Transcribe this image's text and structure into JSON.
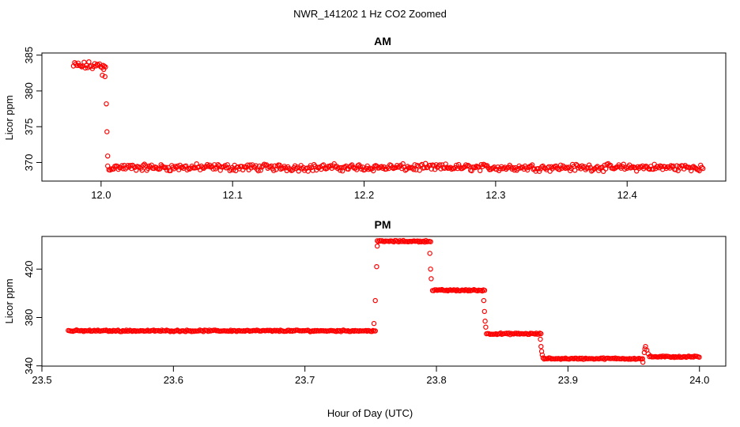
{
  "figure": {
    "title": "NWR_141202  1 Hz CO2 Zoomed",
    "xlabel": "Hour of Day (UTC)"
  },
  "chart_data": [
    {
      "type": "scatter",
      "title": "AM",
      "ylabel": "Licor ppm",
      "xlim": [
        11.955,
        12.475
      ],
      "ylim": [
        367.4,
        385.3
      ],
      "xticks": [
        "12.0",
        "12.1",
        "12.2",
        "12.3",
        "12.4"
      ],
      "yticks": [
        "370",
        "375",
        "380",
        "385"
      ],
      "color": "#ff0000",
      "series": [
        {
          "segments": [
            {
              "x0": 11.979,
              "x1": 12.004,
              "y": 383.5,
              "jitter": 0.55
            },
            {
              "x0": 12.005,
              "x1": 12.458,
              "y": 369.3,
              "jitter": 0.45
            }
          ],
          "transition": [
            {
              "x": 12.001,
              "y": 382.2
            },
            {
              "x": 12.002,
              "y": 383.0
            },
            {
              "x": 12.003,
              "y": 382.0
            },
            {
              "x": 12.004,
              "y": 378.2
            },
            {
              "x": 12.0045,
              "y": 374.3
            },
            {
              "x": 12.005,
              "y": 370.9
            }
          ]
        }
      ]
    },
    {
      "type": "scatter",
      "title": "PM",
      "ylabel": "Licor ppm",
      "xlim": [
        23.5,
        24.02
      ],
      "ylim": [
        339.8,
        447
      ],
      "xticks": [
        "23.5",
        "23.6",
        "23.7",
        "23.8",
        "23.9",
        "24.0"
      ],
      "yticks": [
        "340",
        "380",
        "420"
      ],
      "color": "#ff0000",
      "series": [
        {
          "segments": [
            {
              "x0": 23.52,
              "x1": 23.754,
              "y": 369.0,
              "jitter": 0.6
            },
            {
              "x0": 23.755,
              "x1": 23.796,
              "y": 443.0,
              "jitter": 0.6
            },
            {
              "x0": 23.797,
              "x1": 23.837,
              "y": 402.5,
              "jitter": 0.6
            },
            {
              "x0": 23.838,
              "x1": 23.88,
              "y": 366.5,
              "jitter": 0.6
            },
            {
              "x0": 23.881,
              "x1": 23.957,
              "y": 346.0,
              "jitter": 0.6
            },
            {
              "x0": 23.962,
              "x1": 24.0,
              "y": 347.5,
              "jitter": 0.6
            }
          ],
          "transition": [
            {
              "x": 23.7525,
              "y": 375.0
            },
            {
              "x": 23.7535,
              "y": 394.0
            },
            {
              "x": 23.7545,
              "y": 422.0
            },
            {
              "x": 23.755,
              "y": 439.0
            },
            {
              "x": 23.795,
              "y": 433.0
            },
            {
              "x": 23.7955,
              "y": 420.0
            },
            {
              "x": 23.796,
              "y": 412.0
            },
            {
              "x": 23.836,
              "y": 394.0
            },
            {
              "x": 23.8365,
              "y": 385.0
            },
            {
              "x": 23.837,
              "y": 377.0
            },
            {
              "x": 23.8375,
              "y": 372.0
            },
            {
              "x": 23.879,
              "y": 362.0
            },
            {
              "x": 23.8795,
              "y": 356.0
            },
            {
              "x": 23.88,
              "y": 352.0
            },
            {
              "x": 23.8805,
              "y": 349.0
            },
            {
              "x": 23.958,
              "y": 351.0
            },
            {
              "x": 23.9585,
              "y": 354.0
            },
            {
              "x": 23.959,
              "y": 356.0
            },
            {
              "x": 23.96,
              "y": 353.0
            },
            {
              "x": 23.961,
              "y": 350.0
            },
            {
              "x": 23.957,
              "y": 343.0
            }
          ]
        }
      ]
    }
  ]
}
